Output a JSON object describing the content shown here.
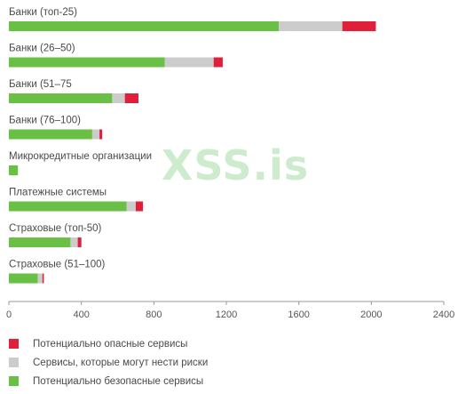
{
  "chart_data": {
    "type": "bar",
    "orientation": "horizontal",
    "stacked": true,
    "categories": [
      "Банки (топ-25)",
      "Банки (26–50)",
      "Банки (51–75",
      "Банки (76–100)",
      "Микрокредитные организации",
      "Платежные системы",
      "Страховые (топ-50)",
      "Страховые (51–100)"
    ],
    "series": [
      {
        "name": "Потенциально безопасные сервисы",
        "color": "#6abf45",
        "values": [
          1490,
          860,
          570,
          460,
          50,
          650,
          340,
          160
        ]
      },
      {
        "name": "Сервисы, которые могут нести риски",
        "color": "#cccccc",
        "values": [
          350,
          270,
          70,
          40,
          0,
          50,
          40,
          25
        ]
      },
      {
        "name": "Потенциально опасные сервисы",
        "color": "#e0203a",
        "values": [
          185,
          50,
          75,
          15,
          0,
          40,
          20,
          8
        ]
      }
    ],
    "xlim": [
      0,
      2400
    ],
    "xticks": [
      "0",
      "400",
      "800",
      "1200",
      "1600",
      "2000",
      "2400"
    ],
    "legend_order": [
      2,
      1,
      0
    ],
    "legend_placement": "bottom-left"
  },
  "watermark": "XSS.is"
}
